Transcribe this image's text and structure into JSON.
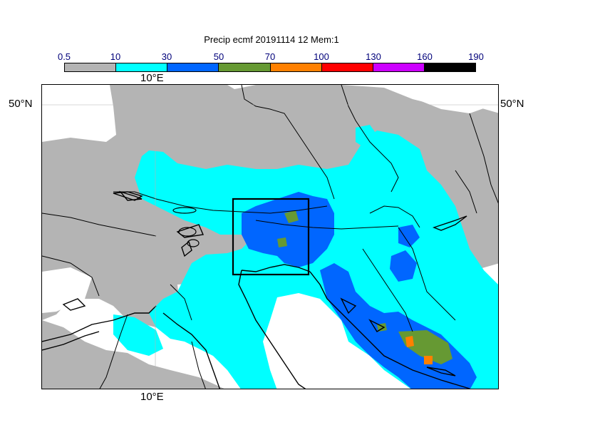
{
  "title": "Precip ecmf 20191114 12 Mem:1",
  "colorbar": {
    "ticks": [
      "0.5",
      "10",
      "30",
      "50",
      "70",
      "100",
      "130",
      "160",
      "190"
    ],
    "colors": [
      "#b4b4b4",
      "#00ffff",
      "#0066ff",
      "#669933",
      "#ff8000",
      "#ff0000",
      "#cc00ff",
      "#000000"
    ]
  },
  "labels": {
    "lon_top": "10°E",
    "lon_bottom": "10°E",
    "lat_left": "50°N",
    "lat_right": "50°N"
  },
  "map_colors": {
    "land_bg": "#ffffff",
    "gray": "#b4b4b4",
    "cyan": "#00ffff",
    "blue": "#0066ff",
    "green": "#669933",
    "orange": "#ff8000",
    "outline": "#000000"
  }
}
